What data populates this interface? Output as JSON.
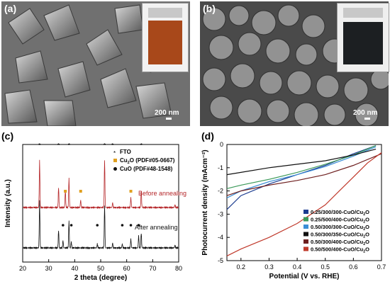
{
  "panels": {
    "a": {
      "label": "(a)",
      "scale": "200 nm"
    },
    "b": {
      "label": "(b)",
      "scale": "200 nm"
    },
    "c": {
      "label": "(c)"
    },
    "d": {
      "label": "(d)"
    }
  },
  "chart_data": [
    {
      "type": "line",
      "panel": "c",
      "xlabel": "2 theta (degree)",
      "ylabel": "Intensity (a.u.)",
      "xlim": [
        20,
        80
      ],
      "xticks": [
        20,
        30,
        40,
        50,
        60,
        70,
        80
      ],
      "legend": [
        {
          "marker": "*",
          "text": "FTO"
        },
        {
          "marker": "■",
          "text": "Cu2O (PDF#05-0667)"
        },
        {
          "marker": "●",
          "text": "CuO (PDF#48-1548)"
        }
      ],
      "annotations": [
        "Before annealing",
        "After annealing"
      ],
      "colors": {
        "before": "#b5272a",
        "after": "#111111",
        "cu2o_marker": "#e0a020"
      },
      "series": [
        {
          "name": "Before annealing",
          "peaks": [
            [
              26.5,
              0.95
            ],
            [
              33.8,
              0.4
            ],
            [
              36.4,
              0.35
            ],
            [
              37.8,
              0.6
            ],
            [
              42.3,
              0.15
            ],
            [
              51.5,
              0.95
            ],
            [
              54.6,
              0.1
            ],
            [
              61.6,
              0.2
            ],
            [
              65.6,
              0.35
            ],
            [
              78.6,
              0.05
            ]
          ]
        },
        {
          "name": "After annealing",
          "peaks": [
            [
              26.5,
              0.95
            ],
            [
              33.8,
              0.35
            ],
            [
              35.5,
              0.15
            ],
            [
              37.8,
              0.55
            ],
            [
              38.7,
              0.12
            ],
            [
              48.7,
              0.08
            ],
            [
              51.5,
              0.85
            ],
            [
              54.6,
              0.1
            ],
            [
              58.3,
              0.08
            ],
            [
              61.6,
              0.18
            ],
            [
              64.6,
              0.25
            ],
            [
              65.6,
              0.3
            ],
            [
              78.6,
              0.05
            ]
          ]
        }
      ]
    },
    {
      "type": "line",
      "panel": "d",
      "xlabel": "Potential (V vs. RHE)",
      "ylabel": "Photocurrent density (mAcm⁻²)",
      "xlim": [
        0.15,
        0.7
      ],
      "ylim": [
        -5,
        0
      ],
      "xticks": [
        0.2,
        0.3,
        0.4,
        0.5,
        0.6,
        0.7
      ],
      "yticks": [
        0,
        -1,
        -2,
        -3,
        -4,
        -5
      ],
      "legend_position": "bottom-right",
      "series": [
        {
          "name": "0.25/300/300-CuO/Cu2O",
          "color": "#1b3b8f",
          "points": [
            [
              0.15,
              -2.8
            ],
            [
              0.2,
              -2.2
            ],
            [
              0.3,
              -1.7
            ],
            [
              0.4,
              -1.3
            ],
            [
              0.5,
              -0.9
            ],
            [
              0.6,
              -0.4
            ],
            [
              0.68,
              -0.05
            ]
          ]
        },
        {
          "name": "0.25/500/400-CuO/Cu2O",
          "color": "#3c9a5a",
          "points": [
            [
              0.15,
              -1.9
            ],
            [
              0.2,
              -1.75
            ],
            [
              0.3,
              -1.5
            ],
            [
              0.4,
              -1.2
            ],
            [
              0.5,
              -0.85
            ],
            [
              0.6,
              -0.45
            ],
            [
              0.68,
              -0.05
            ]
          ]
        },
        {
          "name": "0.50/300/300-CuO/Cu2O",
          "color": "#3b8ed6",
          "points": [
            [
              0.15,
              -2.3
            ],
            [
              0.2,
              -2.0
            ],
            [
              0.3,
              -1.6
            ],
            [
              0.4,
              -1.3
            ],
            [
              0.5,
              -0.95
            ],
            [
              0.6,
              -0.5
            ],
            [
              0.68,
              -0.1
            ]
          ]
        },
        {
          "name": "0.50/300/350-CuO/Cu2O",
          "color": "#111111",
          "points": [
            [
              0.15,
              -1.3
            ],
            [
              0.2,
              -1.2
            ],
            [
              0.3,
              -1.0
            ],
            [
              0.4,
              -0.85
            ],
            [
              0.5,
              -0.7
            ],
            [
              0.6,
              -0.45
            ],
            [
              0.68,
              -0.2
            ]
          ]
        },
        {
          "name": "0.50/300/400-CuO/Cu2O",
          "color": "#6e1f1f",
          "points": [
            [
              0.15,
              -2.2
            ],
            [
              0.2,
              -2.0
            ],
            [
              0.3,
              -1.75
            ],
            [
              0.4,
              -1.55
            ],
            [
              0.5,
              -1.3
            ],
            [
              0.6,
              -0.9
            ],
            [
              0.7,
              -0.4
            ]
          ]
        },
        {
          "name": "0.50/500/400-CuO/Cu2O",
          "color": "#c0392b",
          "points": [
            [
              0.15,
              -4.8
            ],
            [
              0.2,
              -4.5
            ],
            [
              0.3,
              -4.0
            ],
            [
              0.4,
              -3.4
            ],
            [
              0.5,
              -2.6
            ],
            [
              0.55,
              -2.0
            ],
            [
              0.6,
              -1.4
            ],
            [
              0.65,
              -0.8
            ],
            [
              0.7,
              -0.35
            ]
          ]
        }
      ]
    }
  ]
}
